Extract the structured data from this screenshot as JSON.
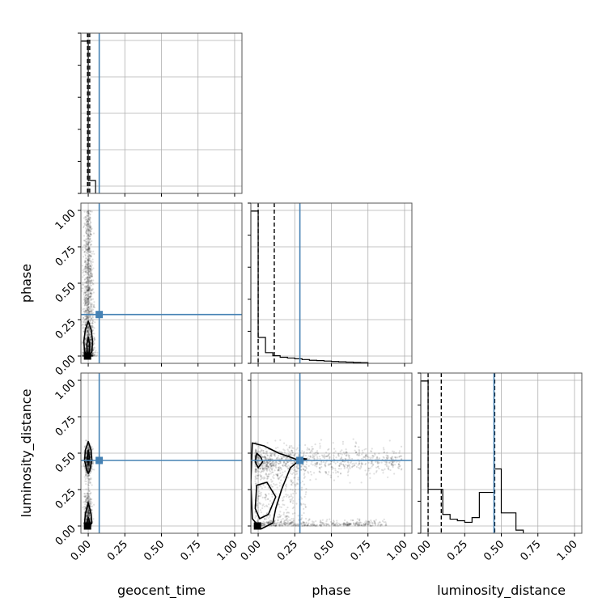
{
  "chart_data": {
    "type": "corner",
    "parameters": [
      "geocent_time",
      "phase",
      "luminosity_distance"
    ],
    "range": [
      -0.05,
      1.05
    ],
    "ticks": [
      0.0,
      0.25,
      0.5,
      0.75,
      1.0
    ],
    "tick_labels": [
      "0.00",
      "0.25",
      "0.50",
      "0.75",
      "1.00"
    ],
    "truths": {
      "geocent_time": 0.075,
      "phase": 0.285,
      "luminosity_distance": 0.45
    },
    "truth_color": "#4682b4",
    "histograms": {
      "geocent_time": {
        "bin_edges": [
          -0.05,
          0.0,
          0.05
        ],
        "heights": [
          0.95,
          0.08
        ],
        "quantiles": [
          -0.005,
          0.0,
          0.01
        ]
      },
      "phase": {
        "bin_edges": [
          -0.05,
          0.0,
          0.05,
          0.1,
          0.15,
          0.2,
          0.25,
          0.3,
          0.35,
          0.4,
          0.45,
          0.5,
          0.55,
          0.6,
          0.65,
          0.7,
          0.75
        ],
        "heights": [
          1.0,
          0.17,
          0.07,
          0.05,
          0.04,
          0.035,
          0.03,
          0.025,
          0.02,
          0.018,
          0.015,
          0.012,
          0.01,
          0.008,
          0.006,
          0.005
        ],
        "quantiles": [
          0.0,
          0.11
        ]
      },
      "luminosity_distance": {
        "bin_edges": [
          -0.05,
          0.0,
          0.05,
          0.1,
          0.15,
          0.2,
          0.25,
          0.3,
          0.35,
          0.4,
          0.45,
          0.5,
          0.55,
          0.6,
          0.65
        ],
        "heights": [
          0.97,
          0.28,
          0.28,
          0.12,
          0.09,
          0.08,
          0.07,
          0.1,
          0.26,
          0.26,
          0.41,
          0.13,
          0.13,
          0.02
        ],
        "quantiles": [
          0.0,
          0.09,
          0.455
        ]
      }
    },
    "contours": {
      "phase_vs_geocent_time": [
        [
          [
            0.0,
            0.24
          ],
          [
            0.02,
            0.18
          ],
          [
            0.03,
            0.1
          ],
          [
            0.025,
            0.03
          ],
          [
            0.0,
            0.0
          ],
          [
            -0.025,
            0.03
          ],
          [
            -0.03,
            0.1
          ],
          [
            -0.02,
            0.18
          ]
        ],
        [
          [
            0.0,
            0.13
          ],
          [
            0.01,
            0.08
          ],
          [
            0.008,
            0.03
          ],
          [
            0.0,
            0.015
          ],
          [
            -0.008,
            0.03
          ],
          [
            -0.01,
            0.08
          ]
        ]
      ],
      "luminosity_distance_vs_geocent_time": [
        [
          [
            0.0,
            0.58
          ],
          [
            0.02,
            0.52
          ],
          [
            0.025,
            0.45
          ],
          [
            0.01,
            0.38
          ],
          [
            0.0,
            0.36
          ],
          [
            -0.01,
            0.38
          ],
          [
            -0.025,
            0.45
          ],
          [
            -0.02,
            0.52
          ]
        ],
        [
          [
            0.0,
            0.52
          ],
          [
            0.008,
            0.47
          ],
          [
            0.0,
            0.43
          ],
          [
            -0.008,
            0.47
          ]
        ],
        [
          [
            0.0,
            0.16
          ],
          [
            0.02,
            0.08
          ],
          [
            0.025,
            0.02
          ],
          [
            0.0,
            -0.01
          ],
          [
            -0.025,
            0.02
          ],
          [
            -0.02,
            0.08
          ]
        ],
        [
          [
            0.0,
            0.06
          ],
          [
            0.01,
            0.02
          ],
          [
            0.0,
            0.0
          ],
          [
            -0.01,
            0.02
          ]
        ]
      ],
      "luminosity_distance_vs_phase": [
        [
          [
            -0.04,
            0.57
          ],
          [
            0.04,
            0.55
          ],
          [
            0.14,
            0.5
          ],
          [
            0.2,
            0.48
          ],
          [
            0.28,
            0.45
          ],
          [
            0.22,
            0.4
          ],
          [
            0.16,
            0.25
          ],
          [
            0.12,
            0.12
          ],
          [
            0.1,
            0.02
          ],
          [
            0.02,
            -0.02
          ],
          [
            -0.04,
            0.05
          ],
          [
            -0.05,
            0.3
          ]
        ],
        [
          [
            -0.01,
            0.5
          ],
          [
            0.02,
            0.47
          ],
          [
            0.03,
            0.44
          ],
          [
            0.0,
            0.4
          ],
          [
            -0.02,
            0.44
          ]
        ],
        [
          [
            -0.01,
            0.28
          ],
          [
            0.06,
            0.3
          ],
          [
            0.12,
            0.2
          ],
          [
            0.07,
            0.08
          ],
          [
            0.01,
            0.05
          ],
          [
            -0.02,
            0.12
          ]
        ],
        [
          [
            0.28,
            0.465
          ],
          [
            0.33,
            0.46
          ],
          [
            0.28,
            0.445
          ]
        ]
      ]
    },
    "peak_markers": {
      "phase_vs_geocent_time": [
        -0.005,
        0.0
      ],
      "luminosity_distance_vs_geocent_time": [
        -0.005,
        0.0
      ],
      "luminosity_distance_vs_phase": [
        -0.005,
        0.0
      ]
    }
  }
}
